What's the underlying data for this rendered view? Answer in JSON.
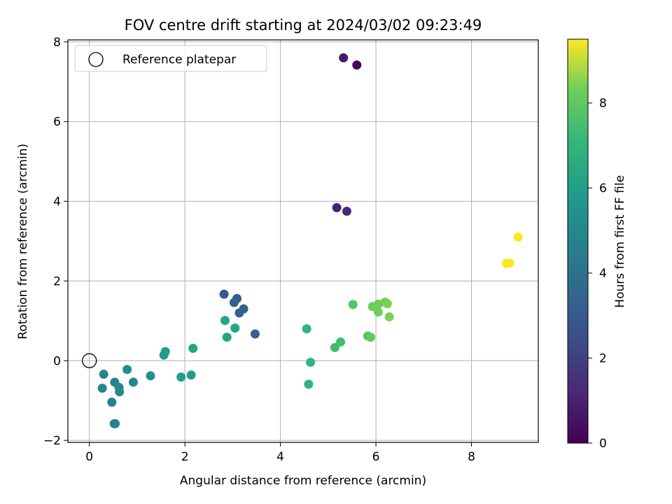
{
  "chart_data": {
    "type": "scatter",
    "title": "FOV centre drift starting at 2024/03/02 09:23:49",
    "xlabel": "Angular distance from reference (arcmin)",
    "ylabel": "Rotation from reference (arcmin)",
    "xlim": [
      -0.45,
      9.4
    ],
    "ylim": [
      -2.05,
      8.05
    ],
    "xticks": [
      0,
      2,
      4,
      6,
      8
    ],
    "yticks": [
      -2,
      0,
      2,
      4,
      6,
      8
    ],
    "grid": true,
    "legend": {
      "placement": "top-left",
      "entries": [
        "Reference platepar"
      ]
    },
    "reference_point": {
      "x": 0,
      "y": 0
    },
    "colorbar": {
      "label": "Hours from first FF file",
      "range": [
        0,
        9.5
      ],
      "ticks": [
        0,
        2,
        4,
        6,
        8
      ],
      "colormap": "viridis"
    },
    "points": [
      {
        "x": 5.6,
        "y": 7.42,
        "c": 0.3
      },
      {
        "x": 5.32,
        "y": 7.6,
        "c": 0.8
      },
      {
        "x": 5.18,
        "y": 3.84,
        "c": 1.0
      },
      {
        "x": 5.39,
        "y": 3.75,
        "c": 1.2
      },
      {
        "x": 2.82,
        "y": 1.67,
        "c": 3.0
      },
      {
        "x": 3.09,
        "y": 1.56,
        "c": 3.1
      },
      {
        "x": 3.03,
        "y": 1.46,
        "c": 3.2
      },
      {
        "x": 3.23,
        "y": 1.3,
        "c": 3.2
      },
      {
        "x": 3.14,
        "y": 1.2,
        "c": 3.3
      },
      {
        "x": 3.47,
        "y": 0.67,
        "c": 3.3
      },
      {
        "x": 0.3,
        "y": -0.34,
        "c": 4.8
      },
      {
        "x": 0.27,
        "y": -0.69,
        "c": 4.9
      },
      {
        "x": 0.47,
        "y": -1.04,
        "c": 4.7
      },
      {
        "x": 0.52,
        "y": -1.58,
        "c": 4.6
      },
      {
        "x": 0.54,
        "y": -1.58,
        "c": 4.7
      },
      {
        "x": 0.53,
        "y": -0.54,
        "c": 4.8
      },
      {
        "x": 0.62,
        "y": -0.67,
        "c": 5.0
      },
      {
        "x": 0.63,
        "y": -0.78,
        "c": 5.1
      },
      {
        "x": 0.92,
        "y": -0.54,
        "c": 4.9
      },
      {
        "x": 0.79,
        "y": -0.22,
        "c": 5.2
      },
      {
        "x": 1.28,
        "y": -0.38,
        "c": 5.4
      },
      {
        "x": 1.59,
        "y": 0.23,
        "c": 5.9
      },
      {
        "x": 1.56,
        "y": 0.14,
        "c": 5.9
      },
      {
        "x": 1.92,
        "y": -0.41,
        "c": 6.0
      },
      {
        "x": 2.13,
        "y": -0.36,
        "c": 6.0
      },
      {
        "x": 2.17,
        "y": 0.31,
        "c": 6.2
      },
      {
        "x": 2.84,
        "y": 1.01,
        "c": 6.3
      },
      {
        "x": 3.05,
        "y": 0.82,
        "c": 6.3
      },
      {
        "x": 2.88,
        "y": 0.59,
        "c": 6.3
      },
      {
        "x": 4.55,
        "y": 0.8,
        "c": 7.0
      },
      {
        "x": 4.63,
        "y": -0.04,
        "c": 7.0
      },
      {
        "x": 4.59,
        "y": -0.59,
        "c": 7.0
      },
      {
        "x": 5.14,
        "y": 0.33,
        "c": 7.4
      },
      {
        "x": 5.26,
        "y": 0.47,
        "c": 7.4
      },
      {
        "x": 5.52,
        "y": 1.41,
        "c": 7.8
      },
      {
        "x": 5.83,
        "y": 0.62,
        "c": 7.9
      },
      {
        "x": 5.89,
        "y": 0.59,
        "c": 8.0
      },
      {
        "x": 5.93,
        "y": 1.36,
        "c": 8.2
      },
      {
        "x": 6.05,
        "y": 1.42,
        "c": 8.3
      },
      {
        "x": 6.05,
        "y": 1.22,
        "c": 8.3
      },
      {
        "x": 6.19,
        "y": 1.47,
        "c": 8.3
      },
      {
        "x": 6.24,
        "y": 1.43,
        "c": 8.4
      },
      {
        "x": 6.28,
        "y": 1.1,
        "c": 8.4
      },
      {
        "x": 8.73,
        "y": 2.44,
        "c": 9.5
      },
      {
        "x": 8.8,
        "y": 2.45,
        "c": 9.5
      },
      {
        "x": 8.98,
        "y": 3.1,
        "c": 9.5
      }
    ]
  }
}
